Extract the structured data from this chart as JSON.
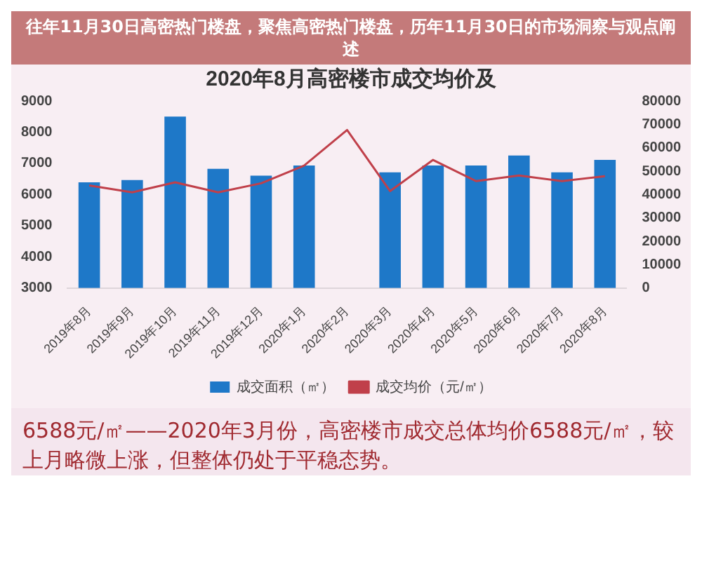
{
  "chart_data": {
    "type": "bar",
    "title": "2020年8月高密楼市成交均价及",
    "categories": [
      "2019年8月",
      "2019年9月",
      "2019年10月",
      "2019年11月",
      "2019年12月",
      "2020年1月",
      "2020年2月",
      "2020年3月",
      "2020年4月",
      "2020年5月",
      "2020年6月",
      "2020年7月",
      "2020年8月"
    ],
    "series": [
      {
        "name": "成交面积（㎡）",
        "axis": "y2",
        "color": "#1e78c8",
        "values": [
          45200,
          46200,
          73300,
          51000,
          48100,
          52400,
          null,
          49500,
          52400,
          52400,
          56700,
          49500,
          54800
        ]
      },
      {
        "name": "成交均价（元/㎡）",
        "type": "line",
        "color": "#c0404a",
        "values": [
          6290,
          6070,
          6390,
          6070,
          6360,
          6930,
          8070,
          6110,
          7110,
          6430,
          6610,
          6430,
          6590
        ]
      }
    ],
    "ylim": [
      3000,
      9000
    ],
    "yticks": [
      3000,
      4000,
      5000,
      6000,
      7000,
      8000,
      9000
    ],
    "y2lim": [
      0,
      80000
    ],
    "y2ticks": [
      0,
      10000,
      20000,
      30000,
      40000,
      50000,
      60000,
      70000,
      80000
    ],
    "legend": "bottom",
    "marker": "none",
    "annotations": [
      "往年11月30日高密热门楼盘，聚焦高密热门楼盘，历年11月30日的市场洞察与观点阐述",
      "6588元/㎡——2020年3月份，高密楼市成交总体均价6588元/㎡，较上月略微上涨，但整体仍处于平稳态势。"
    ]
  }
}
